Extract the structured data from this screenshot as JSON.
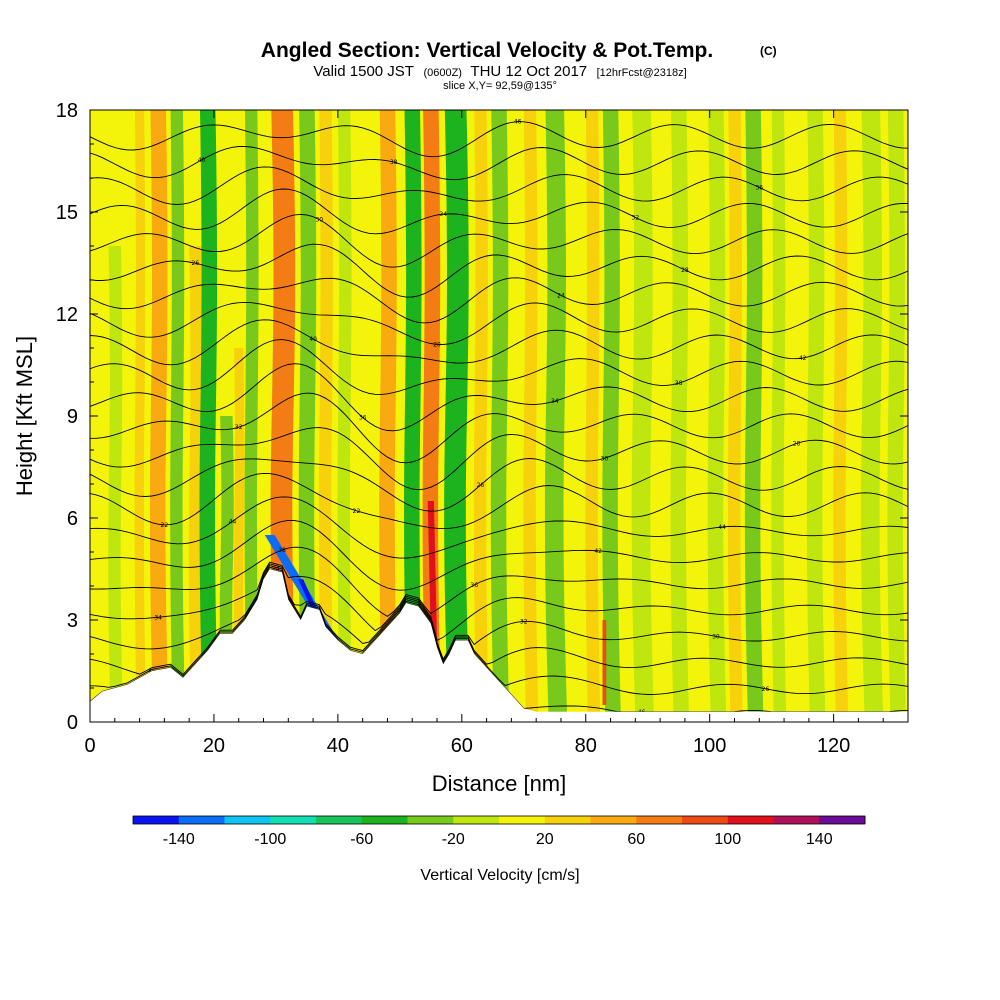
{
  "chart_data": {
    "type": "heatmap",
    "title": "Angled Section: Vertical Velocity & Pot.Temp.",
    "title_unit": "(C)",
    "subtitle": {
      "valid": "Valid 1500 JST",
      "utc": "(0600Z)",
      "date": "THU 12 Oct 2017",
      "fcst": "[12hrFcst@2318z]"
    },
    "slice_label": "slice X,Y= 92,59@135°",
    "xlabel": "Distance [nm]",
    "ylabel": "Height [Kft MSL]",
    "xlim": [
      0,
      132
    ],
    "ylim": [
      0,
      18
    ],
    "x_ticks": [
      "0",
      "20",
      "40",
      "60",
      "80",
      "100",
      "120"
    ],
    "y_ticks": [
      "0",
      "3",
      "6",
      "9",
      "12",
      "15",
      "18"
    ],
    "colorbar": {
      "title": "Vertical Velocity [cm/s]",
      "labels": [
        "-140",
        "-100",
        "-60",
        "-20",
        "20",
        "60",
        "100",
        "140"
      ],
      "bin_edges": [
        -160,
        -140,
        -120,
        -100,
        -80,
        -60,
        -40,
        -20,
        0,
        20,
        40,
        60,
        80,
        100,
        120,
        140,
        160
      ],
      "colors": [
        "#0a14ee",
        "#0b6cf5",
        "#0fc4f0",
        "#12deb4",
        "#17c45a",
        "#1db31f",
        "#79c91c",
        "#bfe60f",
        "#f4f40b",
        "#f7d10c",
        "#f8aa10",
        "#f47c14",
        "#ee4a16",
        "#e0101c",
        "#b0105a",
        "#6a0c94"
      ]
    },
    "terrain_kft": [
      [
        0,
        0.6
      ],
      [
        2,
        0.9
      ],
      [
        6,
        1.1
      ],
      [
        10,
        1.5
      ],
      [
        13,
        1.6
      ],
      [
        15,
        1.3
      ],
      [
        17,
        1.7
      ],
      [
        19,
        2.1
      ],
      [
        21,
        2.6
      ],
      [
        23,
        2.6
      ],
      [
        25,
        3.0
      ],
      [
        27,
        3.6
      ],
      [
        28,
        4.2
      ],
      [
        29,
        4.5
      ],
      [
        31,
        4.4
      ],
      [
        32,
        3.6
      ],
      [
        34,
        3.0
      ],
      [
        35,
        3.4
      ],
      [
        37,
        3.3
      ],
      [
        38,
        2.8
      ],
      [
        40,
        2.4
      ],
      [
        42,
        2.1
      ],
      [
        44,
        2.0
      ],
      [
        46,
        2.4
      ],
      [
        48,
        2.8
      ],
      [
        50,
        3.2
      ],
      [
        51,
        3.5
      ],
      [
        53,
        3.4
      ],
      [
        55,
        2.9
      ],
      [
        56,
        2.2
      ],
      [
        57,
        1.7
      ],
      [
        58,
        2.0
      ],
      [
        59,
        2.4
      ],
      [
        61,
        2.4
      ],
      [
        62,
        2.0
      ],
      [
        64,
        1.6
      ],
      [
        66,
        1.2
      ],
      [
        68,
        0.8
      ],
      [
        70,
        0.4
      ],
      [
        72,
        0.3
      ],
      [
        132,
        0.3
      ]
    ],
    "theta_levels_C": [
      20,
      22,
      24,
      26,
      28,
      30,
      32,
      34,
      36,
      38,
      40,
      42,
      44,
      46,
      48,
      50,
      52,
      54,
      56,
      58,
      60,
      62,
      64
    ],
    "contour_labels": [
      "48",
      "44",
      "40",
      "38",
      "36",
      "34",
      "32",
      "30",
      "28",
      "26",
      "24",
      "22",
      "20",
      "46",
      "42",
      "38",
      "36",
      "34",
      "32",
      "30",
      "28",
      "26",
      "24",
      "46",
      "44",
      "42",
      "40",
      "38",
      "36",
      "34",
      "32",
      "30",
      "28",
      "26",
      "22"
    ],
    "bands": [
      {
        "x": 4,
        "w": 2.0,
        "v": -10,
        "top": 14
      },
      {
        "x": 8,
        "w": 1.5,
        "v": 30,
        "top": 18
      },
      {
        "x": 11,
        "w": 2.5,
        "v": 50,
        "top": 18
      },
      {
        "x": 14,
        "w": 2.0,
        "v": -25,
        "top": 18
      },
      {
        "x": 17,
        "w": 2.0,
        "v": 30,
        "top": 14
      },
      {
        "x": 19,
        "w": 2.5,
        "v": -45,
        "top": 18
      },
      {
        "x": 22,
        "w": 2.0,
        "v": -30,
        "top": 9
      },
      {
        "x": 24,
        "w": 1.5,
        "v": 30,
        "top": 11
      },
      {
        "x": 26,
        "w": 2.0,
        "v": -35,
        "top": 18
      },
      {
        "x": 31,
        "w": 3.5,
        "v": 70,
        "top": 18
      },
      {
        "x": 35,
        "w": 2.5,
        "v": -35,
        "top": 18
      },
      {
        "x": 38,
        "w": 2.0,
        "v": 25,
        "top": 18
      },
      {
        "x": 41,
        "w": 2.0,
        "v": -15,
        "top": 18
      },
      {
        "x": 48,
        "w": 2.5,
        "v": 55,
        "top": 18
      },
      {
        "x": 52,
        "w": 2.5,
        "v": -45,
        "top": 18
      },
      {
        "x": 55,
        "w": 2.5,
        "v": 70,
        "top": 18
      },
      {
        "x": 59,
        "w": 3.5,
        "v": -50,
        "top": 18
      },
      {
        "x": 63,
        "w": 2.0,
        "v": 25,
        "top": 18
      },
      {
        "x": 66,
        "w": 2.5,
        "v": -25,
        "top": 18
      },
      {
        "x": 71,
        "w": 2.0,
        "v": 30,
        "top": 18
      },
      {
        "x": 75,
        "w": 3.0,
        "v": -25,
        "top": 18
      },
      {
        "x": 81,
        "w": 2.0,
        "v": 30,
        "top": 18
      },
      {
        "x": 84,
        "w": 2.5,
        "v": -35,
        "top": 18
      },
      {
        "x": 89,
        "w": 3.0,
        "v": -18,
        "top": 18
      },
      {
        "x": 95,
        "w": 2.5,
        "v": -20,
        "top": 18
      },
      {
        "x": 101,
        "w": 2.5,
        "v": -18,
        "top": 18
      },
      {
        "x": 104,
        "w": 2.0,
        "v": 25,
        "top": 18
      },
      {
        "x": 107,
        "w": 2.5,
        "v": -22,
        "top": 18
      },
      {
        "x": 111,
        "w": 2.0,
        "v": -15,
        "top": 18
      },
      {
        "x": 117,
        "w": 2.5,
        "v": -18,
        "top": 18
      },
      {
        "x": 121,
        "w": 2.0,
        "v": 30,
        "top": 18
      },
      {
        "x": 126,
        "w": 3.0,
        "v": -20,
        "top": 18
      },
      {
        "x": 130,
        "w": 2.5,
        "v": -18,
        "top": 18
      }
    ],
    "features": [
      {
        "name": "lee downdraft",
        "x0": 29,
        "z0": 5.5,
        "x1": 40,
        "z1": 2.2,
        "w": 1.6,
        "v": -125
      },
      {
        "name": "lee downdraft core",
        "x0": 34,
        "z0": 4.2,
        "x1": 37,
        "z1": 3.0,
        "w": 0.8,
        "v": -150
      },
      {
        "name": "ridge updraft",
        "x0": 55,
        "z0": 6.5,
        "x1": 55.5,
        "z1": 2.4,
        "w": 1.0,
        "v": 110
      },
      {
        "name": "valley updraft",
        "x0": 83,
        "z0": 3.0,
        "x1": 83,
        "z1": 0.5,
        "w": 0.6,
        "v": 95
      }
    ]
  }
}
